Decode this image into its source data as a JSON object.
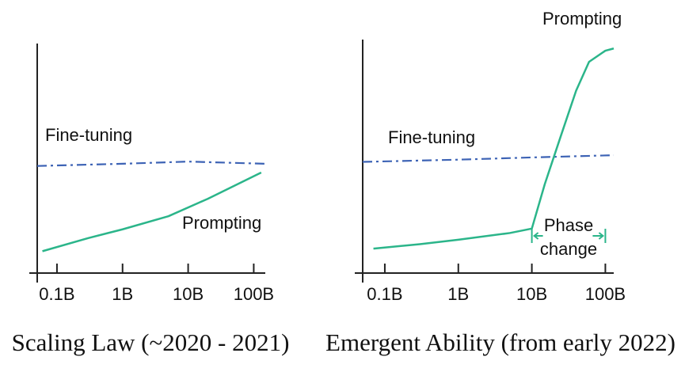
{
  "chart_data": [
    {
      "type": "line",
      "caption": "Scaling Law (~2020 - 2021)",
      "xscale": "log",
      "xlim": [
        0.05,
        150
      ],
      "ylim": [
        0,
        105
      ],
      "xticks": [
        {
          "value": 0.1,
          "label": "0.1B"
        },
        {
          "value": 1,
          "label": "1B"
        },
        {
          "value": 10,
          "label": "10B"
        },
        {
          "value": 100,
          "label": "100B"
        }
      ],
      "series": [
        {
          "name": "Fine-tuning",
          "color": "#3d63b5",
          "dashed": true,
          "x": [
            0.05,
            1,
            10,
            150
          ],
          "values": [
            49,
            50,
            51,
            50
          ]
        },
        {
          "name": "Prompting",
          "color": "#2bb58a",
          "dashed": false,
          "x": [
            0.06,
            0.3,
            1,
            5,
            20,
            130
          ],
          "values": [
            10,
            16,
            20,
            26,
            34,
            46
          ]
        }
      ]
    },
    {
      "type": "line",
      "caption": "Emergent Ability (from early 2022)",
      "xscale": "log",
      "xlim": [
        0.05,
        130
      ],
      "ylim": [
        0,
        105
      ],
      "xticks": [
        {
          "value": 0.1,
          "label": "0.1B"
        },
        {
          "value": 1,
          "label": "1B"
        },
        {
          "value": 10,
          "label": "10B"
        },
        {
          "value": 100,
          "label": "100B"
        }
      ],
      "series": [
        {
          "name": "Fine-tuning",
          "color": "#3d63b5",
          "dashed": true,
          "x": [
            0.05,
            1,
            10,
            130
          ],
          "values": [
            50,
            51,
            52,
            53
          ]
        },
        {
          "name": "Prompting",
          "color": "#2bb58a",
          "dashed": false,
          "x": [
            0.07,
            0.3,
            1,
            5,
            10,
            15,
            25,
            40,
            60,
            100,
            130
          ],
          "values": [
            11,
            13,
            15,
            18,
            20,
            40,
            62,
            82,
            95,
            100,
            101
          ]
        }
      ],
      "annotation": {
        "text": [
          "Phase",
          "change"
        ],
        "x": [
          10,
          100
        ]
      }
    }
  ]
}
